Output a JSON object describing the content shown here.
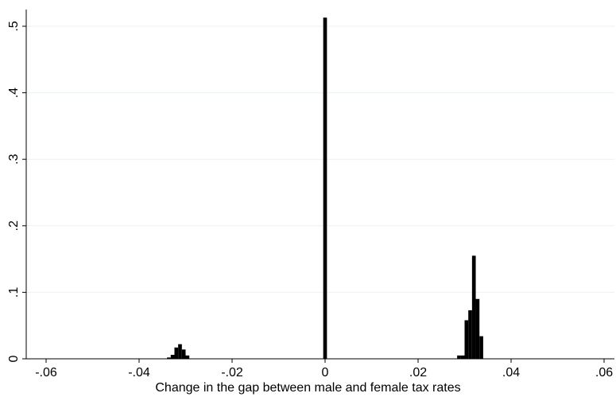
{
  "chart_data": {
    "type": "bar",
    "title": "",
    "xlabel": "Change in the gap between male and female tax rates",
    "ylabel": "",
    "xlim": [
      -0.06,
      0.06
    ],
    "ylim": [
      0,
      0.52
    ],
    "x_ticks": [
      -0.06,
      -0.04,
      -0.02,
      0,
      0.02,
      0.04,
      0.06
    ],
    "x_tick_labels": [
      "-.06",
      "-.04",
      "-.02",
      "0",
      ".02",
      ".04",
      ".06"
    ],
    "y_ticks": [
      0,
      0.1,
      0.2,
      0.3,
      0.4,
      0.5
    ],
    "y_tick_labels": [
      "0",
      ".1",
      ".2",
      ".3",
      ".4",
      ".5"
    ],
    "grid": true,
    "bin_width": 0.0008,
    "bars": [
      {
        "x": -0.0336,
        "value": 0.002
      },
      {
        "x": -0.0328,
        "value": 0.006
      },
      {
        "x": -0.032,
        "value": 0.017
      },
      {
        "x": -0.0312,
        "value": 0.022
      },
      {
        "x": -0.0304,
        "value": 0.014
      },
      {
        "x": -0.0296,
        "value": 0.005
      },
      {
        "x": 0.0,
        "value": 0.513
      },
      {
        "x": 0.0288,
        "value": 0.005
      },
      {
        "x": 0.0296,
        "value": 0.005
      },
      {
        "x": 0.0304,
        "value": 0.058
      },
      {
        "x": 0.0312,
        "value": 0.073
      },
      {
        "x": 0.032,
        "value": 0.155
      },
      {
        "x": 0.0328,
        "value": 0.09
      },
      {
        "x": 0.0336,
        "value": 0.034
      }
    ],
    "bar_color": "#000000",
    "gridline_color": "#eaf2f3"
  }
}
